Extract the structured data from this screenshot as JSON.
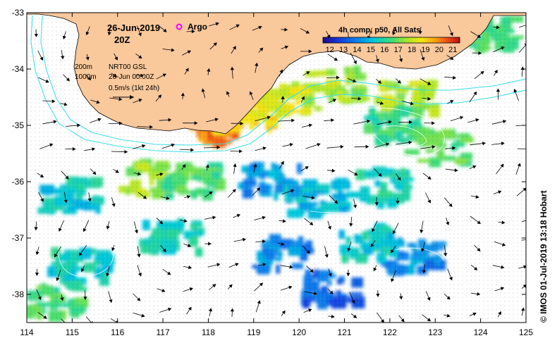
{
  "map": {
    "date_label": "26-Jun-2019",
    "time_label": "20Z",
    "argo_label": "Argo",
    "composite_label": "4h comp, p50, All Sats",
    "colorbar_ticks": [
      "12",
      "13",
      "14",
      "15",
      "16",
      "17",
      "18",
      "19",
      "20",
      "21"
    ],
    "colorbar_range": [
      11.5,
      21.5
    ],
    "legend": {
      "isobath_200": "200m",
      "isobath_1000": "1000m",
      "model_label": "NRT00 GSL",
      "model_time": "26-Jun 00:00Z",
      "scale_label": "0.5m/s (1kt 24h)"
    },
    "credit": "© IMOS 01-Jul-2019 13:18 Hobart",
    "x_axis": {
      "ticks": [
        "114",
        "115",
        "116",
        "117",
        "118",
        "119",
        "120",
        "121",
        "122",
        "123",
        "124",
        "125"
      ],
      "range": [
        114,
        125
      ]
    },
    "y_axis": {
      "ticks": [
        "-33",
        "-34",
        "-35",
        "-36",
        "-37",
        "-38"
      ],
      "range": [
        -38.5,
        -33
      ]
    },
    "colors": {
      "land": "#f9c89b",
      "shelf_line": "#40e0e8",
      "argo": "#ff00ff"
    },
    "sst_patches": [
      {
        "lon": 118.2,
        "lat": -35.05,
        "sst": 20.0
      },
      {
        "lon": 118.8,
        "lat": -34.8,
        "sst": 19.0
      },
      {
        "lon": 119.8,
        "lat": -34.55,
        "sst": 18.2
      },
      {
        "lon": 120.8,
        "lat": -34.3,
        "sst": 17.6
      },
      {
        "lon": 122.4,
        "lat": -34.5,
        "sst": 17.7
      },
      {
        "lon": 122.1,
        "lat": -35.0,
        "sst": 16.3
      },
      {
        "lon": 123.1,
        "lat": -35.4,
        "sst": 16.8
      },
      {
        "lon": 124.2,
        "lat": -33.4,
        "sst": 16.5
      },
      {
        "lon": 116.8,
        "lat": -35.95,
        "sst": 17.5
      },
      {
        "lon": 117.7,
        "lat": -36.0,
        "sst": 16.6
      },
      {
        "lon": 119.4,
        "lat": -36.0,
        "sst": 14.4
      },
      {
        "lon": 120.4,
        "lat": -36.3,
        "sst": 15.0
      },
      {
        "lon": 121.8,
        "lat": -36.1,
        "sst": 15.6
      },
      {
        "lon": 115.0,
        "lat": -36.25,
        "sst": 15.4
      },
      {
        "lon": 122.5,
        "lat": -37.3,
        "sst": 14.2
      },
      {
        "lon": 121.5,
        "lat": -37.1,
        "sst": 15.4
      },
      {
        "lon": 119.6,
        "lat": -37.3,
        "sst": 14.1
      },
      {
        "lon": 115.2,
        "lat": -37.5,
        "sst": 15.6
      },
      {
        "lon": 114.6,
        "lat": -38.1,
        "sst": 16.5
      },
      {
        "lon": 117.2,
        "lat": -37.0,
        "sst": 15.8
      },
      {
        "lon": 120.7,
        "lat": -37.9,
        "sst": 13.5
      }
    ]
  }
}
